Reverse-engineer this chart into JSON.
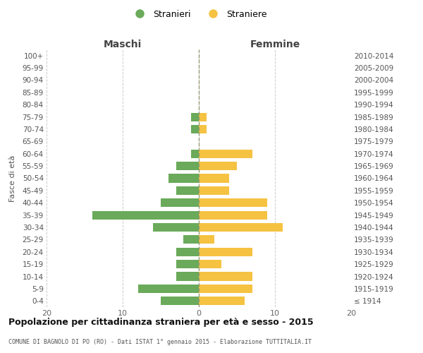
{
  "age_groups": [
    "100+",
    "95-99",
    "90-94",
    "85-89",
    "80-84",
    "75-79",
    "70-74",
    "65-69",
    "60-64",
    "55-59",
    "50-54",
    "45-49",
    "40-44",
    "35-39",
    "30-34",
    "25-29",
    "20-24",
    "15-19",
    "10-14",
    "5-9",
    "0-4"
  ],
  "birth_years": [
    "≤ 1914",
    "1915-1919",
    "1920-1924",
    "1925-1929",
    "1930-1934",
    "1935-1939",
    "1940-1944",
    "1945-1949",
    "1950-1954",
    "1955-1959",
    "1960-1964",
    "1965-1969",
    "1970-1974",
    "1975-1979",
    "1980-1984",
    "1985-1989",
    "1990-1994",
    "1995-1999",
    "2000-2004",
    "2005-2009",
    "2010-2014"
  ],
  "maschi": [
    0,
    0,
    0,
    0,
    0,
    1,
    1,
    0,
    1,
    3,
    4,
    3,
    5,
    14,
    6,
    2,
    3,
    3,
    3,
    8,
    5
  ],
  "femmine": [
    0,
    0,
    0,
    0,
    0,
    1,
    1,
    0,
    7,
    5,
    4,
    4,
    9,
    9,
    11,
    2,
    7,
    3,
    7,
    7,
    6
  ],
  "maschi_color": "#6aaa5a",
  "femmine_color": "#f5c242",
  "title": "Popolazione per cittadinanza straniera per età e sesso - 2015",
  "subtitle": "COMUNE DI BAGNOLO DI PO (RO) - Dati ISTAT 1° gennaio 2015 - Elaborazione TUTTITALIA.IT",
  "xlabel_left": "Maschi",
  "xlabel_right": "Femmine",
  "ylabel_left": "Fasce di età",
  "xlim": 20,
  "legend_stranieri": "Stranieri",
  "legend_straniere": "Straniere",
  "bg_color": "#ffffff",
  "grid_color": "#cccccc"
}
